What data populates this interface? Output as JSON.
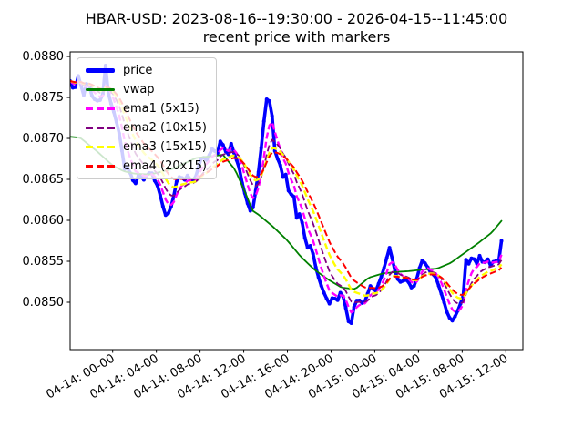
{
  "figure": {
    "title_line1": "HBAR-USD: 2023-08-16--19:30:00 - 2026-04-15--11:45:00",
    "title_line2": "recent price with markers",
    "background_color": "#ffffff"
  },
  "chart_data": {
    "type": "line",
    "title": "HBAR-USD: 2023-08-16--19:30:00 - 2026-04-15--11:45:00 / recent price with markers",
    "xlabel": "",
    "ylabel": "",
    "grid": false,
    "legend_position": "upper-left",
    "x_unit": "hours since 04-14 00:00",
    "xlim": [
      -3.895,
      37.56
    ],
    "ylim": [
      0.084422,
      0.088056
    ],
    "y_ticks": [
      0.085,
      0.0855,
      0.086,
      0.0865,
      0.087,
      0.0875,
      0.088
    ],
    "y_tick_labels": [
      "0.0850",
      "0.0855",
      "0.0860",
      "0.0865",
      "0.0870",
      "0.0875",
      "0.0880"
    ],
    "x_tick_hours": [
      0,
      4,
      8,
      12,
      16,
      20,
      24,
      28,
      32,
      36
    ],
    "x_tick_labels": [
      "04-14: 00-00",
      "04-14: 04-00",
      "04-14: 08-00",
      "04-14: 12-00",
      "04-14: 16-00",
      "04-14: 20-00",
      "04-15: 00-00",
      "04-15: 04-00",
      "04-15: 08-00",
      "04-15: 12-00"
    ],
    "series": [
      {
        "name": "price",
        "color": "#0000ff",
        "style": "solid",
        "width": 3.6,
        "markers": true,
        "points": [
          [
            -3.9,
            0.0877
          ],
          [
            -3.5,
            0.08757
          ],
          [
            -3.1,
            0.08779
          ],
          [
            -2.7,
            0.0875
          ],
          [
            -2.3,
            0.08772
          ],
          [
            -1.9,
            0.08752
          ],
          [
            -1.5,
            0.08745
          ],
          [
            -1.2,
            0.08748
          ],
          [
            -0.95,
            0.08742
          ],
          [
            -0.75,
            0.0879
          ],
          [
            -0.55,
            0.08788
          ],
          [
            -0.35,
            0.08745
          ],
          [
            -0.1,
            0.08742
          ],
          [
            0.15,
            0.0873
          ],
          [
            0.45,
            0.08715
          ],
          [
            0.7,
            0.087
          ],
          [
            0.9,
            0.0868
          ],
          [
            1.11,
            0.08662
          ],
          [
            1.44,
            0.08665
          ],
          [
            1.78,
            0.0865
          ],
          [
            2.11,
            0.08645
          ],
          [
            2.44,
            0.08658
          ],
          [
            2.78,
            0.08648
          ],
          [
            3.11,
            0.08655
          ],
          [
            3.53,
            0.0866
          ],
          [
            3.86,
            0.08648
          ],
          [
            4.2,
            0.0864
          ],
          [
            4.53,
            0.0862
          ],
          [
            4.86,
            0.08606
          ],
          [
            5.2,
            0.0861
          ],
          [
            5.53,
            0.08625
          ],
          [
            5.86,
            0.08648
          ],
          [
            6.2,
            0.08655
          ],
          [
            6.53,
            0.08648
          ],
          [
            6.86,
            0.08655
          ],
          [
            7.2,
            0.08648
          ],
          [
            7.53,
            0.0865
          ],
          [
            7.86,
            0.08665
          ],
          [
            8.2,
            0.0868
          ],
          [
            8.53,
            0.08672
          ],
          [
            8.86,
            0.0868
          ],
          [
            9.2,
            0.0869
          ],
          [
            9.53,
            0.08678
          ],
          [
            9.86,
            0.08697
          ],
          [
            10.2,
            0.0869
          ],
          [
            10.53,
            0.08677
          ],
          [
            10.86,
            0.08694
          ],
          [
            11.2,
            0.08678
          ],
          [
            11.53,
            0.08668
          ],
          [
            11.86,
            0.08645
          ],
          [
            12.2,
            0.08628
          ],
          [
            12.53,
            0.08612
          ],
          [
            12.79,
            0.08611
          ],
          [
            13.03,
            0.0863
          ],
          [
            13.36,
            0.0866
          ],
          [
            13.7,
            0.087
          ],
          [
            13.95,
            0.08735
          ],
          [
            14.15,
            0.08752
          ],
          [
            14.32,
            0.08745
          ],
          [
            14.48,
            0.08748
          ],
          [
            14.7,
            0.0871
          ],
          [
            14.95,
            0.08668
          ],
          [
            15.2,
            0.0868
          ],
          [
            15.53,
            0.08652
          ],
          [
            15.86,
            0.08656
          ],
          [
            16.2,
            0.08628
          ],
          [
            16.53,
            0.08636
          ],
          [
            16.86,
            0.08602
          ],
          [
            17.2,
            0.0861
          ],
          [
            17.53,
            0.08582
          ],
          [
            17.86,
            0.08566
          ],
          [
            18.2,
            0.0857
          ],
          [
            18.53,
            0.08546
          ],
          [
            18.86,
            0.0853
          ],
          [
            19.2,
            0.08516
          ],
          [
            19.53,
            0.08506
          ],
          [
            19.86,
            0.08498
          ],
          [
            20.2,
            0.08508
          ],
          [
            20.53,
            0.085
          ],
          [
            20.86,
            0.08512
          ],
          [
            21.2,
            0.08505
          ],
          [
            21.53,
            0.08478
          ],
          [
            21.82,
            0.08472
          ],
          [
            22.11,
            0.08495
          ],
          [
            22.45,
            0.08505
          ],
          [
            22.78,
            0.08499
          ],
          [
            23.04,
            0.08499
          ],
          [
            23.63,
            0.08521
          ],
          [
            24.04,
            0.08512
          ],
          [
            24.71,
            0.08535
          ],
          [
            25.38,
            0.08568
          ],
          [
            25.8,
            0.0854
          ],
          [
            26.21,
            0.08524
          ],
          [
            26.96,
            0.08528
          ],
          [
            27.46,
            0.08515
          ],
          [
            27.88,
            0.0853
          ],
          [
            28.29,
            0.08552
          ],
          [
            28.71,
            0.08546
          ],
          [
            29.13,
            0.08536
          ],
          [
            29.54,
            0.08532
          ],
          [
            29.96,
            0.08516
          ],
          [
            30.3,
            0.08502
          ],
          [
            30.71,
            0.08483
          ],
          [
            31.13,
            0.08477
          ],
          [
            31.55,
            0.08488
          ],
          [
            31.96,
            0.08502
          ],
          [
            32.13,
            0.0851
          ],
          [
            32.3,
            0.0855
          ],
          [
            32.46,
            0.08556
          ],
          [
            32.63,
            0.08545
          ],
          [
            32.96,
            0.08558
          ],
          [
            33.3,
            0.08545
          ],
          [
            33.63,
            0.08558
          ],
          [
            33.96,
            0.08545
          ],
          [
            34.3,
            0.08554
          ],
          [
            34.63,
            0.08544
          ],
          [
            34.96,
            0.08552
          ],
          [
            35.3,
            0.08548
          ],
          [
            35.5,
            0.08556
          ],
          [
            35.7,
            0.08594
          ]
        ]
      },
      {
        "name": "vwap",
        "color": "#008000",
        "style": "solid",
        "width": 1.8,
        "markers": false,
        "points": [
          [
            -3.9,
            0.08702
          ],
          [
            -3.0,
            0.08701
          ],
          [
            -1.5,
            0.08685
          ],
          [
            0.0,
            0.08667
          ],
          [
            1.0,
            0.0866
          ],
          [
            2.0,
            0.08657
          ],
          [
            3.44,
            0.08656
          ],
          [
            5.53,
            0.08663
          ],
          [
            7.61,
            0.08676
          ],
          [
            10.11,
            0.0868
          ],
          [
            11.2,
            0.08662
          ],
          [
            12.2,
            0.08632
          ],
          [
            12.79,
            0.08612
          ],
          [
            13.45,
            0.08606
          ],
          [
            14.7,
            0.08592
          ],
          [
            15.95,
            0.08576
          ],
          [
            17.2,
            0.08556
          ],
          [
            18.45,
            0.0854
          ],
          [
            19.7,
            0.08528
          ],
          [
            20.95,
            0.08518
          ],
          [
            22.2,
            0.08516
          ],
          [
            23.45,
            0.0853
          ],
          [
            24.7,
            0.08535
          ],
          [
            26.0,
            0.08537
          ],
          [
            27.2,
            0.08538
          ],
          [
            28.45,
            0.0854
          ],
          [
            29.7,
            0.08541
          ],
          [
            30.95,
            0.08548
          ],
          [
            32.2,
            0.0856
          ],
          [
            33.45,
            0.08572
          ],
          [
            34.7,
            0.08585
          ],
          [
            35.7,
            0.08601
          ]
        ]
      },
      {
        "name": "ema1 (5x15)",
        "color": "#ff00ff",
        "style": "dashed",
        "width": 2.4,
        "derived": {
          "from": "price",
          "type": "ema",
          "span": 5,
          "bar_minutes": 15
        }
      },
      {
        "name": "ema2 (10x15)",
        "color": "#800080",
        "style": "dashed",
        "width": 1.8,
        "derived": {
          "from": "price",
          "type": "ema",
          "span": 10,
          "bar_minutes": 15
        }
      },
      {
        "name": "ema3 (15x15)",
        "color": "#ffff00",
        "style": "dashed",
        "width": 2.4,
        "derived": {
          "from": "price",
          "type": "ema",
          "span": 15,
          "bar_minutes": 15
        }
      },
      {
        "name": "ema4 (20x15)",
        "color": "#ff0000",
        "style": "dashed",
        "width": 2.0,
        "derived": {
          "from": "price",
          "type": "ema",
          "span": 20,
          "bar_minutes": 15
        }
      }
    ]
  },
  "legend": {
    "entries": [
      "price",
      "vwap",
      "ema1 (5x15)",
      "ema2 (10x15)",
      "ema3 (15x15)",
      "ema4 (20x15)"
    ]
  }
}
